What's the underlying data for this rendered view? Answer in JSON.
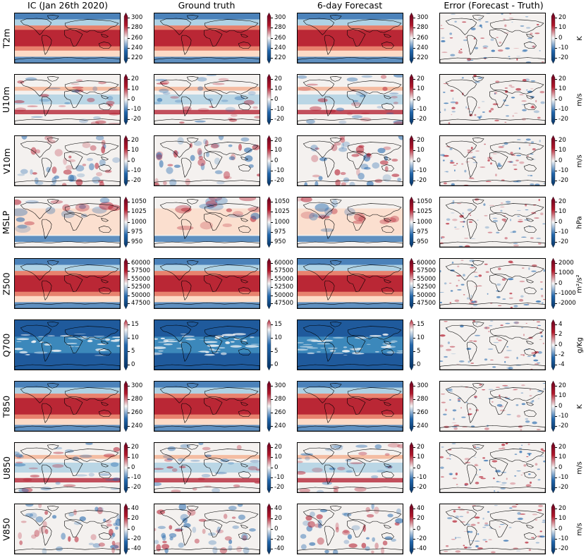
{
  "columns": [
    {
      "title": "IC (Jan 26th 2020)"
    },
    {
      "title": "Ground truth"
    },
    {
      "title": "6-day Forecast"
    },
    {
      "title": "Error (Forecast - Truth)"
    }
  ],
  "rows": [
    {
      "label": "T2m",
      "unit": "K",
      "field_ticks": [
        "300",
        "280",
        "260",
        "240",
        "220"
      ],
      "error_ticks": [
        "20",
        "10",
        "0",
        "-10",
        "-20"
      ],
      "field_style": "temp"
    },
    {
      "label": "U10m",
      "unit": "m/s",
      "field_ticks": [
        "20",
        "10",
        "0",
        "-10",
        "-20"
      ],
      "error_ticks": [
        "20",
        "10",
        "0",
        "-10",
        "-20"
      ],
      "field_style": "zonal"
    },
    {
      "label": "V10m",
      "unit": "m/s",
      "field_ticks": [
        "20",
        "10",
        "0",
        "-10",
        "-20"
      ],
      "error_ticks": [
        "20",
        "10",
        "0",
        "-10",
        "-20"
      ],
      "field_style": "merid"
    },
    {
      "label": "MSLP",
      "unit": "hPa",
      "field_ticks": [
        "1050",
        "1025",
        "1000",
        "975",
        "950"
      ],
      "error_ticks": [
        "20",
        "10",
        "0",
        "-10",
        "-20"
      ],
      "field_style": "mslp"
    },
    {
      "label": "Z500",
      "unit": "m²/s²",
      "field_ticks": [
        "60000",
        "57500",
        "55000",
        "52500",
        "50000",
        "47500"
      ],
      "error_ticks": [
        "2000",
        "1000",
        "0",
        "-1000",
        "-2000"
      ],
      "field_style": "temp"
    },
    {
      "label": "Q700",
      "unit": "g/Kg",
      "field_ticks": [
        "15",
        "10",
        "5",
        "0"
      ],
      "error_ticks": [
        "4",
        "2",
        "0",
        "-2",
        "-4"
      ],
      "field_style": "moist"
    },
    {
      "label": "T850",
      "unit": "K",
      "field_ticks": [
        "300",
        "280",
        "260",
        "240"
      ],
      "error_ticks": [
        "20",
        "10",
        "0",
        "-10",
        "-20"
      ],
      "field_style": "temp"
    },
    {
      "label": "U850",
      "unit": "m/s",
      "field_ticks": [
        "20",
        "10",
        "0",
        "-10",
        "-20"
      ],
      "error_ticks": [
        "20",
        "10",
        "0",
        "-10",
        "-20"
      ],
      "field_style": "zonal"
    },
    {
      "label": "V850",
      "unit": "m/s",
      "field_ticks": [
        "40",
        "20",
        "0",
        "-20",
        "-40"
      ],
      "error_ticks": [
        "20",
        "10",
        "0",
        "-10",
        "-20"
      ],
      "field_style": "merid"
    }
  ],
  "colormap": {
    "name": "RdBu_r",
    "low": "#2166ac",
    "mid": "#f7f7f7",
    "high": "#b2182b",
    "extreme_low": "#053061",
    "extreme_high": "#67001f"
  }
}
